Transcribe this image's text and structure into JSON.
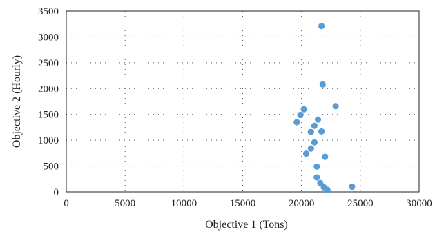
{
  "chart_data": {
    "type": "scatter",
    "xlabel": "Objective 1 (Tons)",
    "ylabel": "Objective 2 (Hourly)",
    "xlim": [
      0,
      30000
    ],
    "ylim": [
      0,
      3500
    ],
    "x_ticks": [
      "0",
      "5000",
      "10000",
      "15000",
      "20000",
      "25000",
      "30000"
    ],
    "y_ticks": [
      "0",
      "500",
      "1000",
      "1500",
      "2000",
      "2500",
      "3000",
      "3500"
    ],
    "grid": "dotted",
    "marker_color": "#5b9bd5",
    "series": [
      {
        "points": [
          {
            "x": 21700,
            "y": 3210
          },
          {
            "x": 21800,
            "y": 2080
          },
          {
            "x": 22900,
            "y": 1660
          },
          {
            "x": 20200,
            "y": 1600
          },
          {
            "x": 19900,
            "y": 1490
          },
          {
            "x": 21400,
            "y": 1400
          },
          {
            "x": 19600,
            "y": 1350
          },
          {
            "x": 21100,
            "y": 1280
          },
          {
            "x": 20800,
            "y": 1160
          },
          {
            "x": 21700,
            "y": 1170
          },
          {
            "x": 21100,
            "y": 960
          },
          {
            "x": 20800,
            "y": 840
          },
          {
            "x": 20400,
            "y": 740
          },
          {
            "x": 22000,
            "y": 680
          },
          {
            "x": 21300,
            "y": 490
          },
          {
            "x": 21300,
            "y": 280
          },
          {
            "x": 21600,
            "y": 170
          },
          {
            "x": 21900,
            "y": 90
          },
          {
            "x": 22200,
            "y": 40
          },
          {
            "x": 24300,
            "y": 100
          }
        ]
      }
    ]
  }
}
